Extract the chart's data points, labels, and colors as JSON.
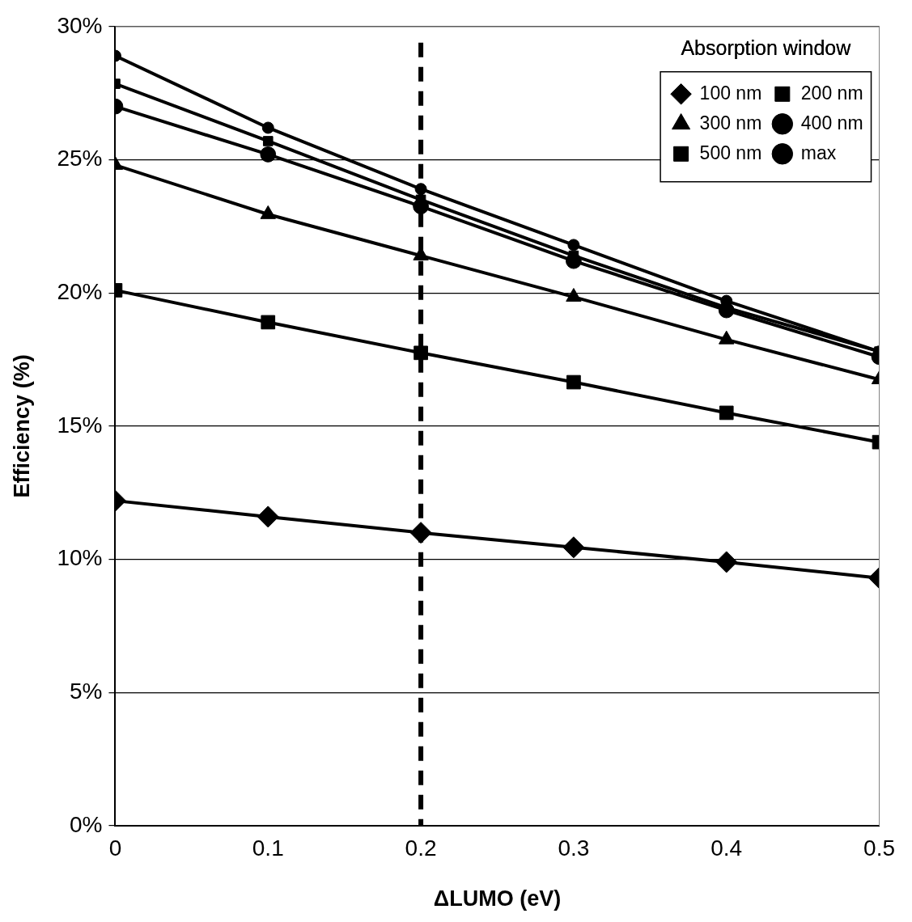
{
  "chart_data": {
    "type": "line",
    "xlabel": "ΔLUMO (eV)",
    "ylabel": "Efficiency (%)",
    "legend_title": "Absorption window",
    "x": [
      0,
      0.1,
      0.2,
      0.3,
      0.4,
      0.5
    ],
    "xlim": [
      0,
      0.5
    ],
    "xticks": [
      0,
      0.1,
      0.2,
      0.3,
      0.4,
      0.5
    ],
    "ylim": [
      0,
      30
    ],
    "yticks": [
      {
        "value": 0,
        "label": "0%"
      },
      {
        "value": 5,
        "label": "5%"
      },
      {
        "value": 10,
        "label": "10%"
      },
      {
        "value": 15,
        "label": "15%"
      },
      {
        "value": 20,
        "label": "20%"
      },
      {
        "value": 25,
        "label": "25%"
      },
      {
        "value": 30,
        "label": "30%"
      }
    ],
    "grid": "y",
    "legend": "top right",
    "line_style": "solid",
    "ref_lines": [
      {
        "axis": "x",
        "value": 0.2,
        "line_style": "dashed",
        "color": "#000000"
      }
    ],
    "series": [
      {
        "name": "100 nm",
        "color": "#000000",
        "marker": "diamond",
        "values": [
          12.2,
          11.6,
          11.0,
          10.45,
          9.9,
          9.3
        ]
      },
      {
        "name": "200 nm",
        "color": "#000000",
        "marker": "square",
        "values": [
          20.1,
          18.9,
          17.75,
          16.65,
          15.5,
          14.4
        ]
      },
      {
        "name": "300 nm",
        "color": "#000000",
        "marker": "triangle",
        "values": [
          24.8,
          22.95,
          21.4,
          19.85,
          18.25,
          16.75
        ]
      },
      {
        "name": "400 nm",
        "color": "#000000",
        "marker": "circle",
        "values": [
          27.0,
          25.2,
          23.25,
          21.2,
          19.35,
          17.6
        ]
      },
      {
        "name": "500 nm",
        "color": "#000000",
        "marker": "square",
        "values": [
          27.85,
          25.7,
          23.5,
          21.4,
          19.45,
          17.8
        ]
      },
      {
        "name": "max",
        "color": "#000000",
        "marker": "circle",
        "values": [
          28.9,
          26.2,
          23.9,
          21.8,
          19.7,
          17.8
        ]
      }
    ]
  }
}
